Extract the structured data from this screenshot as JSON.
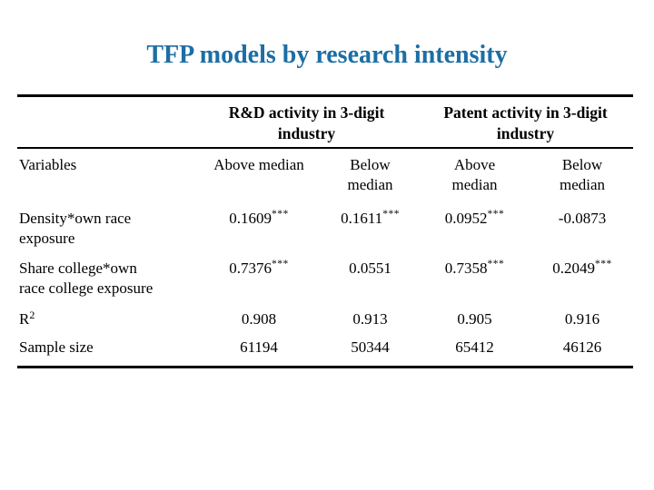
{
  "slide": {
    "title": "TFP models by research intensity",
    "title_color": "#1c6ea4",
    "text_color": "#000000",
    "background_color": "#ffffff"
  },
  "table": {
    "group_headers": [
      {
        "line1": "R&D activity in 3-digit",
        "line2": "industry"
      },
      {
        "line1": "Patent activity in 3-digit",
        "line2": "industry"
      }
    ],
    "subheaders": {
      "variables": "Variables",
      "col2": "Above median",
      "col3": {
        "line1": "Below",
        "line2": "median"
      },
      "col4": {
        "line1": "Above",
        "line2": "median"
      },
      "col5": {
        "line1": "Below",
        "line2": "median"
      }
    },
    "rows": [
      {
        "label_line1": "Density*own race",
        "label_line2": "exposure",
        "label_sup": "",
        "values": [
          {
            "num": "0.1609",
            "stars": "***"
          },
          {
            "num": "0.1611",
            "stars": "***"
          },
          {
            "num": "0.0952",
            "stars": "***"
          },
          {
            "num": "-0.0873",
            "stars": ""
          }
        ]
      },
      {
        "label_line1": "Share college*own",
        "label_line2": "race college exposure",
        "label_sup": "",
        "values": [
          {
            "num": "0.7376",
            "stars": "***"
          },
          {
            "num": "0.0551",
            "stars": ""
          },
          {
            "num": "0.7358",
            "stars": "***"
          },
          {
            "num": "0.2049",
            "stars": "***"
          }
        ]
      },
      {
        "label_line1": "R",
        "label_line2": "",
        "label_sup": "2",
        "values": [
          {
            "num": "0.908",
            "stars": ""
          },
          {
            "num": "0.913",
            "stars": ""
          },
          {
            "num": "0.905",
            "stars": ""
          },
          {
            "num": "0.916",
            "stars": ""
          }
        ]
      },
      {
        "label_line1": "Sample size",
        "label_line2": "",
        "label_sup": "",
        "values": [
          {
            "num": "61194",
            "stars": ""
          },
          {
            "num": "50344",
            "stars": ""
          },
          {
            "num": "65412",
            "stars": ""
          },
          {
            "num": "46126",
            "stars": ""
          }
        ]
      }
    ]
  }
}
